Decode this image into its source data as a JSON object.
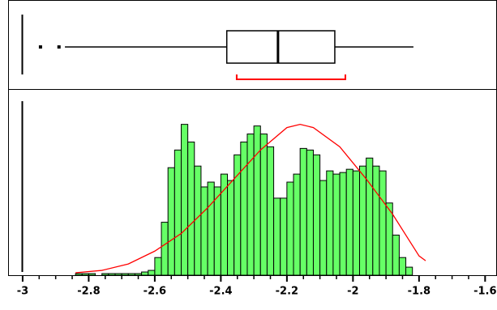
{
  "chart_data": {
    "type": "histogram",
    "bins": [
      -2.84,
      -2.82,
      -2.8,
      -2.78,
      -2.76,
      -2.74,
      -2.72,
      -2.7,
      -2.68,
      -2.66,
      -2.64,
      -2.62,
      -2.6,
      -2.58,
      -2.56,
      -2.54,
      -2.52,
      -2.5,
      -2.48,
      -2.46,
      -2.44,
      -2.42,
      -2.4,
      -2.38,
      -2.36,
      -2.34,
      -2.32,
      -2.3,
      -2.28,
      -2.26,
      -2.24,
      -2.22,
      -2.2,
      -2.18,
      -2.16,
      -2.14,
      -2.12,
      -2.1,
      -2.08,
      -2.06,
      -2.04,
      -2.02,
      -2,
      -1.98,
      -1.96,
      -1.94,
      -1.92,
      -1.9,
      -1.88,
      -1.86,
      -1.84,
      -1.82
    ],
    "values": [
      1,
      1,
      1,
      0,
      1,
      1,
      1,
      1,
      1,
      1,
      2,
      3,
      11,
      33,
      67,
      78,
      94,
      83,
      68,
      55,
      58,
      55,
      63,
      59,
      75,
      83,
      88,
      93,
      88,
      80,
      48,
      48,
      58,
      63,
      79,
      78,
      75,
      59,
      65,
      63,
      64,
      66,
      65,
      68,
      73,
      68,
      65,
      45,
      25,
      11,
      5
    ],
    "color": "#66ff66",
    "fit_curve": {
      "color": "#ff0000",
      "x": [
        -2.84,
        -2.76,
        -2.68,
        -2.6,
        -2.52,
        -2.44,
        -2.36,
        -2.28,
        -2.2,
        -2.16,
        -2.12,
        -2.04,
        -1.96,
        -1.88,
        -1.8,
        -1.78
      ],
      "values": [
        1.5,
        3,
        7,
        15,
        26,
        42,
        60,
        78,
        92,
        94,
        92,
        80,
        60,
        38,
        12,
        9
      ]
    },
    "box_plot": {
      "min": -2.872,
      "q1": -2.382,
      "median": -2.227,
      "q3": -2.055,
      "max": -1.817,
      "outliers": [
        -2.946,
        -2.89
      ],
      "shortest_half": [
        -2.352,
        -2.023
      ],
      "shortest_half_color": "#ff0000"
    },
    "xlim": [
      -3.044,
      -1.564
    ],
    "ylim": [
      0,
      115
    ],
    "xticks": [
      -3,
      -2.8,
      -2.6,
      -2.4,
      -2.2,
      -2,
      -1.8,
      -1.6
    ],
    "minor_xticks": [
      -2.95,
      -2.9,
      -2.85,
      -2.75,
      -2.7,
      -2.65,
      -2.55,
      -2.5,
      -2.45,
      -2.35,
      -2.3,
      -2.25,
      -2.15,
      -2.1,
      -2.05,
      -1.95,
      -1.9,
      -1.85,
      -1.75,
      -1.7,
      -1.65,
      -1.55
    ]
  }
}
